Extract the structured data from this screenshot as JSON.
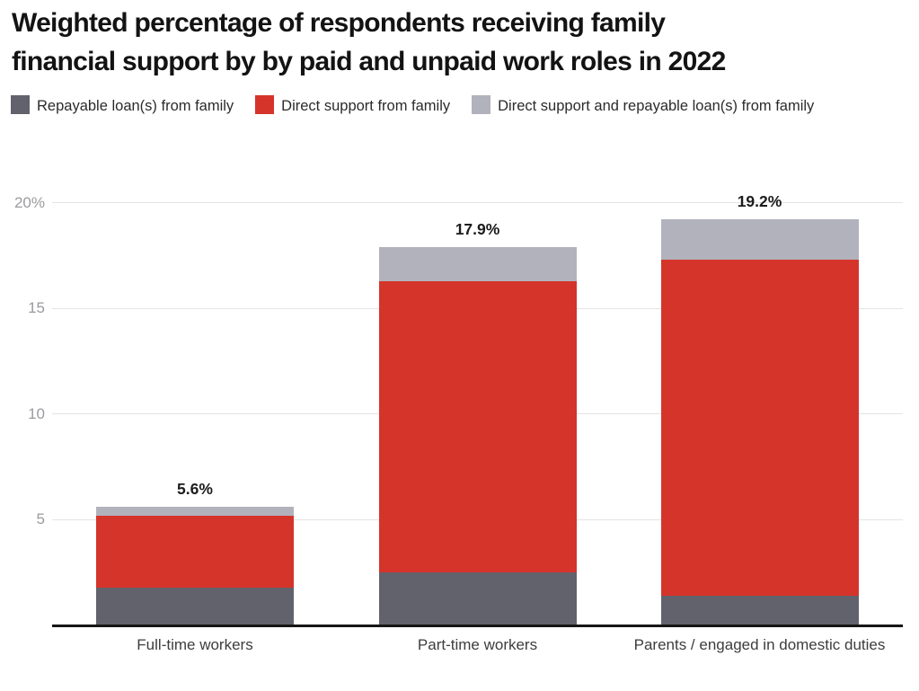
{
  "title": {
    "line1": "Weighted percentage of respondents receiving family",
    "line2": "financial support by by paid and unpaid work roles in 2022"
  },
  "legend": [
    {
      "label": "Repayable loan(s) from family",
      "color": "#62626c"
    },
    {
      "label": "Direct support from family",
      "color": "#d5342b"
    },
    {
      "label": "Direct support and repayable loan(s) from family",
      "color": "#b2b2bc"
    }
  ],
  "chart_data": {
    "type": "bar",
    "stacked": true,
    "title": "Weighted percentage of respondents receiving family financial support by by paid and unpaid work roles in 2022",
    "categories": [
      "Full-time workers",
      "Part-time workers",
      "Parents / engaged in domestic duties"
    ],
    "series": [
      {
        "name": "Repayable loan(s) from family",
        "color": "#62626c",
        "values": [
          1.8,
          2.5,
          1.4
        ]
      },
      {
        "name": "Direct support from family",
        "color": "#d5342b",
        "values": [
          3.4,
          13.8,
          15.9
        ]
      },
      {
        "name": "Direct support and repayable loan(s) from family",
        "color": "#b2b2bc",
        "values": [
          0.4,
          1.6,
          1.9
        ]
      }
    ],
    "totals": [
      5.6,
      17.9,
      19.2
    ],
    "total_labels": [
      "5.6%",
      "17.9%",
      "19.2%"
    ],
    "xlabel": "",
    "ylabel": "",
    "ylim": [
      0,
      20
    ],
    "y_ticks": [
      {
        "label": "20%",
        "value": 20
      },
      {
        "label": "15",
        "value": 15
      },
      {
        "label": "10",
        "value": 10
      },
      {
        "label": "5",
        "value": 5
      }
    ],
    "grid": "horizontal",
    "legend_position": "top"
  }
}
